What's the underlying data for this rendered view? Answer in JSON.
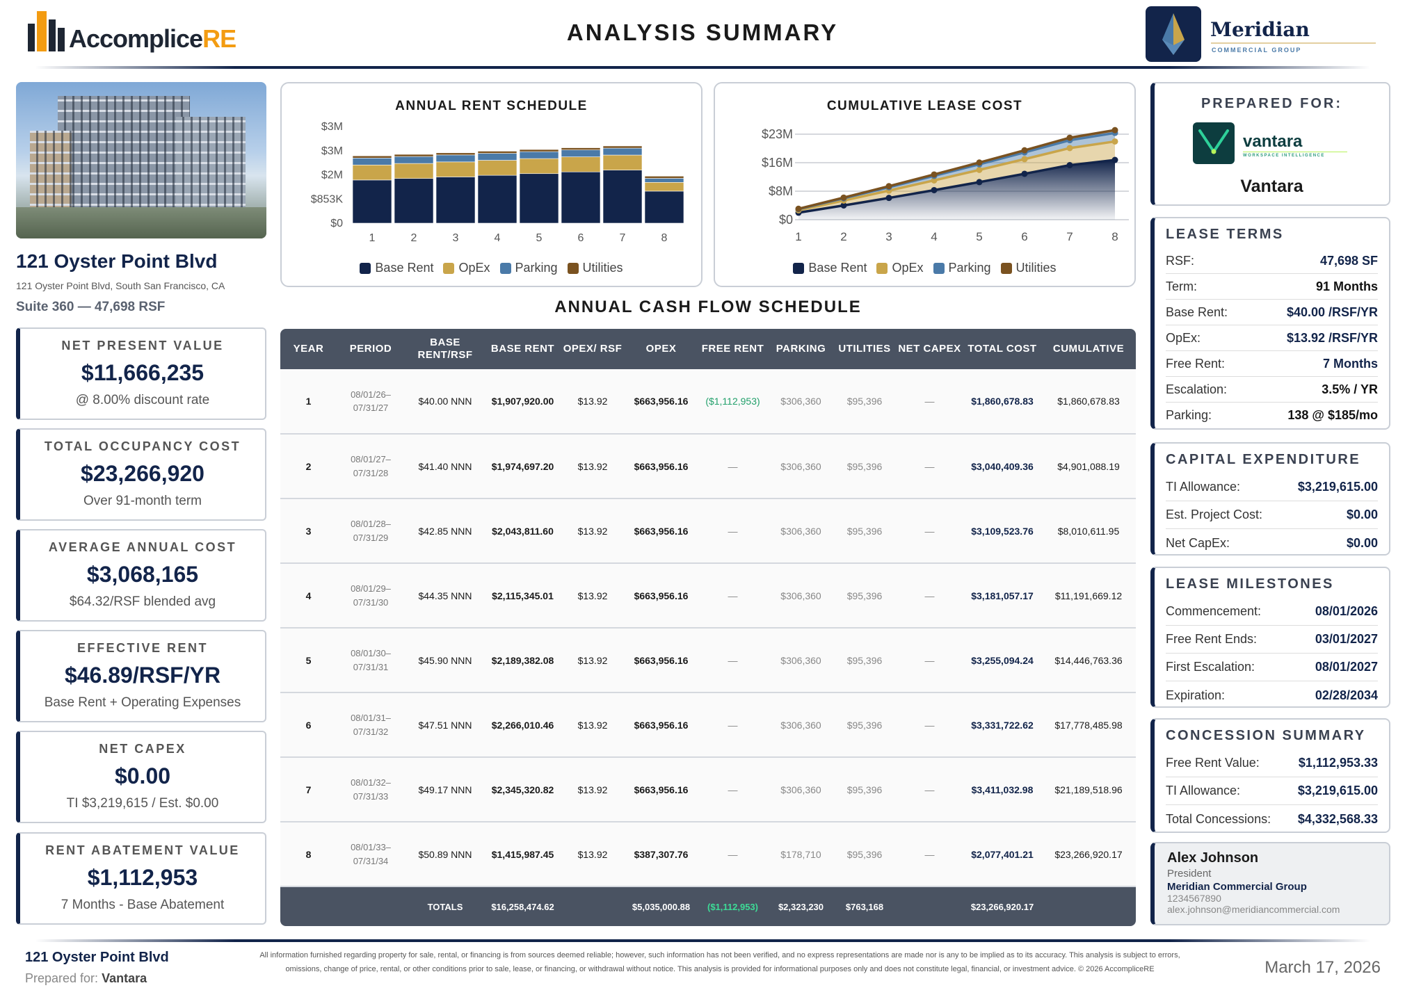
{
  "header": {
    "brand_main": "Accomplice",
    "brand_accent": "RE",
    "title": "ANALYSIS SUMMARY",
    "partner_name": "Meridian",
    "partner_sub": "COMMERCIAL GROUP"
  },
  "property": {
    "name": "121 Oyster Point Blvd",
    "address": "121 Oyster Point Blvd, South San Francisco, CA",
    "suite": "Suite 360 — 47,698 RSF"
  },
  "kpis": [
    {
      "label": "NET PRESENT VALUE",
      "value": "$11,666,235",
      "sub": "@ 8.00% discount rate"
    },
    {
      "label": "TOTAL OCCUPANCY COST",
      "value": "$23,266,920",
      "sub": "Over 91-month term"
    },
    {
      "label": "AVERAGE ANNUAL COST",
      "value": "$3,068,165",
      "sub": "$64.32/RSF blended avg"
    },
    {
      "label": "EFFECTIVE RENT",
      "value": "$46.89/RSF/YR",
      "sub": "Base Rent + Operating Expenses"
    },
    {
      "label": "NET CAPEX",
      "value": "$0.00",
      "sub": "TI $3,219,615 / Est. $0.00"
    },
    {
      "label": "RENT ABATEMENT VALUE",
      "value": "$1,112,953",
      "sub": "7 Months - Base Abatement"
    }
  ],
  "colors": {
    "base": "#12244a",
    "opex": "#c9a54a",
    "parking": "#4a7aa8",
    "utilities": "#7a5220"
  },
  "chart_data": [
    {
      "type": "bar",
      "stacked": true,
      "title": "ANNUAL RENT SCHEDULE",
      "categories": [
        "1",
        "2",
        "3",
        "4",
        "5",
        "6",
        "7",
        "8"
      ],
      "series": [
        {
          "name": "Base Rent",
          "values": [
            1907920,
            1974697,
            2043812,
            2115345,
            2189382,
            2266010,
            2345321,
            1415987
          ]
        },
        {
          "name": "OpEx",
          "values": [
            663956,
            663956,
            663956,
            663956,
            663956,
            663956,
            663956,
            387308
          ]
        },
        {
          "name": "Parking",
          "values": [
            306360,
            306360,
            306360,
            306360,
            306360,
            306360,
            306360,
            178710
          ]
        },
        {
          "name": "Utilities",
          "values": [
            95396,
            95396,
            95396,
            95396,
            95396,
            95396,
            95396,
            95396
          ]
        }
      ],
      "ylim": [
        0,
        4270000
      ],
      "ytick_labels": [
        "$0",
        "$853K",
        "$2M",
        "$3M",
        "$3M"
      ],
      "legend": "bottom"
    },
    {
      "type": "area",
      "stacked": true,
      "cumulative": true,
      "title": "CUMULATIVE LEASE COST",
      "categories": [
        "1",
        "2",
        "3",
        "4",
        "5",
        "6",
        "7",
        "8"
      ],
      "series_names": [
        "Base Rent",
        "OpEx",
        "Parking",
        "Utilities"
      ],
      "ylim": [
        0,
        23270000
      ],
      "ytick_labels": [
        "$0",
        "$8M",
        "$16M",
        "$23M"
      ],
      "legend": "bottom"
    }
  ],
  "prepared": {
    "label": "PREPARED FOR:",
    "logo_name": "vantara",
    "logo_sub": "WORKSPACE INTELLIGENCE",
    "client": "Vantara"
  },
  "lease_terms": {
    "title": "LEASE TERMS",
    "rows": [
      [
        "RSF:",
        "47,698 SF"
      ],
      [
        "Term:",
        "91 Months"
      ],
      [
        "Base Rent:",
        "$40.00 /RSF/YR"
      ],
      [
        "OpEx:",
        "$13.92 /RSF/YR"
      ],
      [
        "Free Rent:",
        "7 Months"
      ],
      [
        "Escalation:",
        "3.5% / YR"
      ],
      [
        "Parking:",
        "138 @ $185/mo"
      ]
    ]
  },
  "capex": {
    "title": "CAPITAL EXPENDITURE",
    "rows": [
      [
        "TI Allowance:",
        "$3,219,615.00"
      ],
      [
        "Est. Project Cost:",
        "$0.00"
      ],
      [
        "Net CapEx:",
        "$0.00"
      ]
    ]
  },
  "milestones": {
    "title": "LEASE MILESTONES",
    "rows": [
      [
        "Commencement:",
        "08/01/2026"
      ],
      [
        "Free Rent Ends:",
        "03/01/2027"
      ],
      [
        "First Escalation:",
        "08/01/2027"
      ],
      [
        "Expiration:",
        "02/28/2034"
      ]
    ]
  },
  "concessions": {
    "title": "CONCESSION SUMMARY",
    "rows": [
      [
        "Free Rent Value:",
        "$1,112,953.33"
      ],
      [
        "TI Allowance:",
        "$3,219,615.00"
      ],
      [
        "Total Concessions:",
        "$4,332,568.33"
      ]
    ]
  },
  "contact": {
    "name": "Alex Johnson",
    "role": "President",
    "company": "Meridian Commercial Group",
    "phone": "1234567890",
    "email": "alex.johnson@meridiancommercial.com"
  },
  "table": {
    "title": "ANNUAL CASH FLOW SCHEDULE",
    "headers": [
      "YEAR",
      "PERIOD",
      "BASE RENT/RSF",
      "BASE RENT",
      "OPEX/ RSF",
      "OPEX",
      "FREE RENT",
      "PARKING",
      "UTILITIES",
      "NET CAPEX",
      "TOTAL COST",
      "CUMULATIVE"
    ],
    "rows": [
      [
        "1",
        "08/01/26–07/31/27",
        "$40.00 NNN",
        "$1,907,920.00",
        "$13.92",
        "$663,956.16",
        "($1,112,953)",
        "$306,360",
        "$95,396",
        "—",
        "$1,860,678.83",
        "$1,860,678.83"
      ],
      [
        "2",
        "08/01/27–07/31/28",
        "$41.40 NNN",
        "$1,974,697.20",
        "$13.92",
        "$663,956.16",
        "—",
        "$306,360",
        "$95,396",
        "—",
        "$3,040,409.36",
        "$4,901,088.19"
      ],
      [
        "3",
        "08/01/28–07/31/29",
        "$42.85 NNN",
        "$2,043,811.60",
        "$13.92",
        "$663,956.16",
        "—",
        "$306,360",
        "$95,396",
        "—",
        "$3,109,523.76",
        "$8,010,611.95"
      ],
      [
        "4",
        "08/01/29–07/31/30",
        "$44.35 NNN",
        "$2,115,345.01",
        "$13.92",
        "$663,956.16",
        "—",
        "$306,360",
        "$95,396",
        "—",
        "$3,181,057.17",
        "$11,191,669.12"
      ],
      [
        "5",
        "08/01/30–07/31/31",
        "$45.90 NNN",
        "$2,189,382.08",
        "$13.92",
        "$663,956.16",
        "—",
        "$306,360",
        "$95,396",
        "—",
        "$3,255,094.24",
        "$14,446,763.36"
      ],
      [
        "6",
        "08/01/31–07/31/32",
        "$47.51 NNN",
        "$2,266,010.46",
        "$13.92",
        "$663,956.16",
        "—",
        "$306,360",
        "$95,396",
        "—",
        "$3,331,722.62",
        "$17,778,485.98"
      ],
      [
        "7",
        "08/01/32–07/31/33",
        "$49.17 NNN",
        "$2,345,320.82",
        "$13.92",
        "$663,956.16",
        "—",
        "$306,360",
        "$95,396",
        "—",
        "$3,411,032.98",
        "$21,189,518.96"
      ],
      [
        "8",
        "08/01/33–07/31/34",
        "$50.89 NNN",
        "$1,415,987.45",
        "$13.92",
        "$387,307.76",
        "—",
        "$178,710",
        "$95,396",
        "—",
        "$2,077,401.21",
        "$23,266,920.17"
      ]
    ],
    "totals": [
      "",
      "",
      "TOTALS",
      "$16,258,474.62",
      "",
      "$5,035,000.88",
      "($1,112,953)",
      "$2,323,230",
      "$763,168",
      "",
      "$23,266,920.17",
      ""
    ]
  },
  "footer": {
    "property": "121 Oyster Point Blvd",
    "prepared_label": "Prepared for: ",
    "prepared_client": "Vantara",
    "disclaimer": "All information furnished regarding property for sale, rental, or financing is from sources deemed reliable; however, such information has not been verified, and no express representations are made nor is any to be implied as to its accuracy. This analysis is subject to errors, omissions, change of price, rental, or other conditions prior to sale, lease, or financing, or withdrawal without notice. This analysis is provided for informational purposes only and does not constitute legal, financial, or investment advice. © 2026 AccompliceRE",
    "date": "March 17, 2026"
  }
}
